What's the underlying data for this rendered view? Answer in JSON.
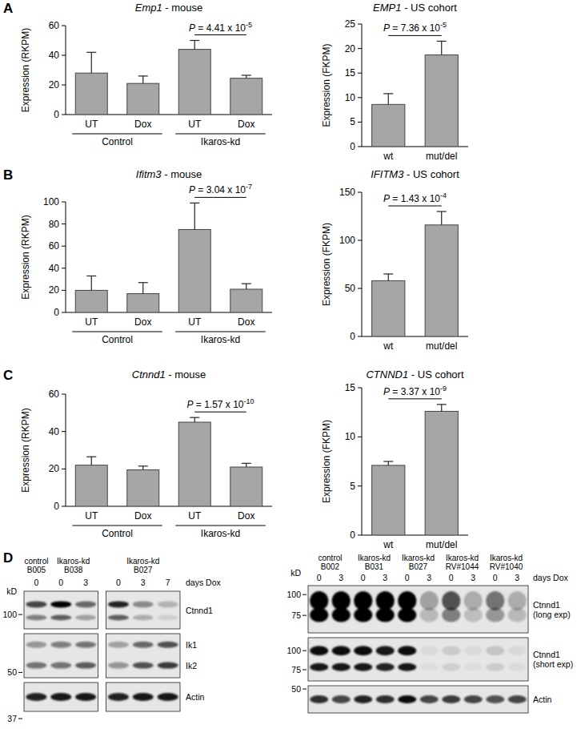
{
  "chart_data": [
    {
      "type": "bar",
      "panel": "A",
      "title": "Emp1 - mouse",
      "y_label": "Expression (RKPM)",
      "categories": [
        "UT",
        "Dox",
        "UT",
        "Dox"
      ],
      "groups": [
        "Control",
        "Control",
        "Ikaros-kd",
        "Ikaros-kd"
      ],
      "values": [
        28,
        21,
        44,
        24.5
      ],
      "errors": [
        14,
        5,
        6,
        2
      ],
      "color": "#a6a6a6",
      "ylim": [
        0,
        60
      ],
      "yticks": [
        0,
        20,
        40,
        60
      ],
      "annotation": {
        "text": "P = 4.41 x 10",
        "exponent": "-5"
      }
    },
    {
      "type": "bar",
      "title": "EMP1 - US cohort",
      "y_label": "Expression (FKPM)",
      "categories": [
        "wt",
        "mut/del"
      ],
      "values": [
        8.6,
        18.7
      ],
      "errors": [
        2.2,
        2.8
      ],
      "color": "#a6a6a6",
      "ylim": [
        0,
        25
      ],
      "yticks": [
        0,
        5,
        10,
        15,
        20,
        25
      ],
      "annotation": {
        "text": "P = 7.36 x 10",
        "exponent": "-5"
      }
    },
    {
      "type": "bar",
      "panel": "B",
      "title": "Ifitm3 - mouse",
      "y_label": "Expression (RKPM)",
      "categories": [
        "UT",
        "Dox",
        "UT",
        "Dox"
      ],
      "groups": [
        "Control",
        "Control",
        "Ikaros-kd",
        "Ikaros-kd"
      ],
      "values": [
        20,
        17,
        75,
        21
      ],
      "errors": [
        13,
        10,
        24,
        5
      ],
      "color": "#a6a6a6",
      "ylim": [
        0,
        100
      ],
      "yticks": [
        0,
        20,
        40,
        60,
        80,
        100
      ],
      "annotation": {
        "text": "P = 3.04 x 10",
        "exponent": "-7"
      }
    },
    {
      "type": "bar",
      "title": "IFITM3 - US cohort",
      "y_label": "Expression (FKPM)",
      "categories": [
        "wt",
        "mut/del"
      ],
      "values": [
        58,
        116
      ],
      "errors": [
        7,
        14
      ],
      "color": "#a6a6a6",
      "ylim": [
        0,
        150
      ],
      "yticks": [
        0,
        50,
        100,
        150
      ],
      "annotation": {
        "text": "P = 1.43 x 10",
        "exponent": "-4"
      }
    },
    {
      "type": "bar",
      "panel": "C",
      "title": "Ctnnd1 - mouse",
      "y_label": "Expression (RKPM)",
      "categories": [
        "UT",
        "Dox",
        "UT",
        "Dox"
      ],
      "groups": [
        "Control",
        "Control",
        "Ikaros-kd",
        "Ikaros-kd"
      ],
      "values": [
        22,
        19.5,
        45,
        21
      ],
      "errors": [
        4.5,
        2,
        2.5,
        2
      ],
      "color": "#a6a6a6",
      "ylim": [
        0,
        60
      ],
      "yticks": [
        0,
        20,
        40,
        60
      ],
      "annotation": {
        "text": "P = 1.57 x 10",
        "exponent": "-10"
      }
    },
    {
      "type": "bar",
      "title": "CTNND1 - US cohort",
      "y_label": "Expression (FKPM)",
      "categories": [
        "wt",
        "mut/del"
      ],
      "values": [
        7.1,
        12.6
      ],
      "errors": [
        0.4,
        0.7
      ],
      "color": "#a6a6a6",
      "ylim": [
        0,
        15
      ],
      "yticks": [
        0,
        5,
        10,
        15
      ],
      "annotation": {
        "text": "P = 3.37 x 10",
        "exponent": "-9"
      }
    }
  ],
  "blots": [
    {
      "panel": "D",
      "kd_label": "kD",
      "lane_header": "days Dox",
      "samples": [
        {
          "label": "control B005",
          "lanes": [
            "0"
          ]
        },
        {
          "label": "Ikaros-kd B038",
          "lanes": [
            "0",
            "3"
          ]
        },
        {
          "label": "Ikaros-kd B027",
          "lanes": [
            "0",
            "3",
            "7"
          ]
        }
      ],
      "rows": [
        {
          "label": "Ctnnd1",
          "markers": [
            100
          ]
        },
        {
          "band_labels": [
            "Ik1",
            "Ik2"
          ],
          "markers": [
            50
          ]
        },
        {
          "label": "Actin",
          "markers": [
            37
          ]
        }
      ]
    },
    {
      "kd_label": "kD",
      "lane_header": "days Dox",
      "samples": [
        {
          "label": "control B002",
          "lanes": [
            "0",
            "3"
          ]
        },
        {
          "label": "Ikaros-kd B031",
          "lanes": [
            "0",
            "3"
          ]
        },
        {
          "label": "Ikaros-kd B027",
          "lanes": [
            "0",
            "3"
          ]
        },
        {
          "label": "Ikaros-kd RV#1044",
          "lanes": [
            "0",
            "3"
          ]
        },
        {
          "label": "Ikaros-kd RV#1040",
          "lanes": [
            "0",
            "3"
          ]
        }
      ],
      "rows": [
        {
          "label": "Ctnnd1 (long exp)",
          "markers": [
            100,
            75
          ]
        },
        {
          "label": "Ctnnd1 (short exp)",
          "markers": [
            100,
            75
          ]
        },
        {
          "label": "Actin",
          "markers": [
            50
          ]
        }
      ]
    }
  ]
}
